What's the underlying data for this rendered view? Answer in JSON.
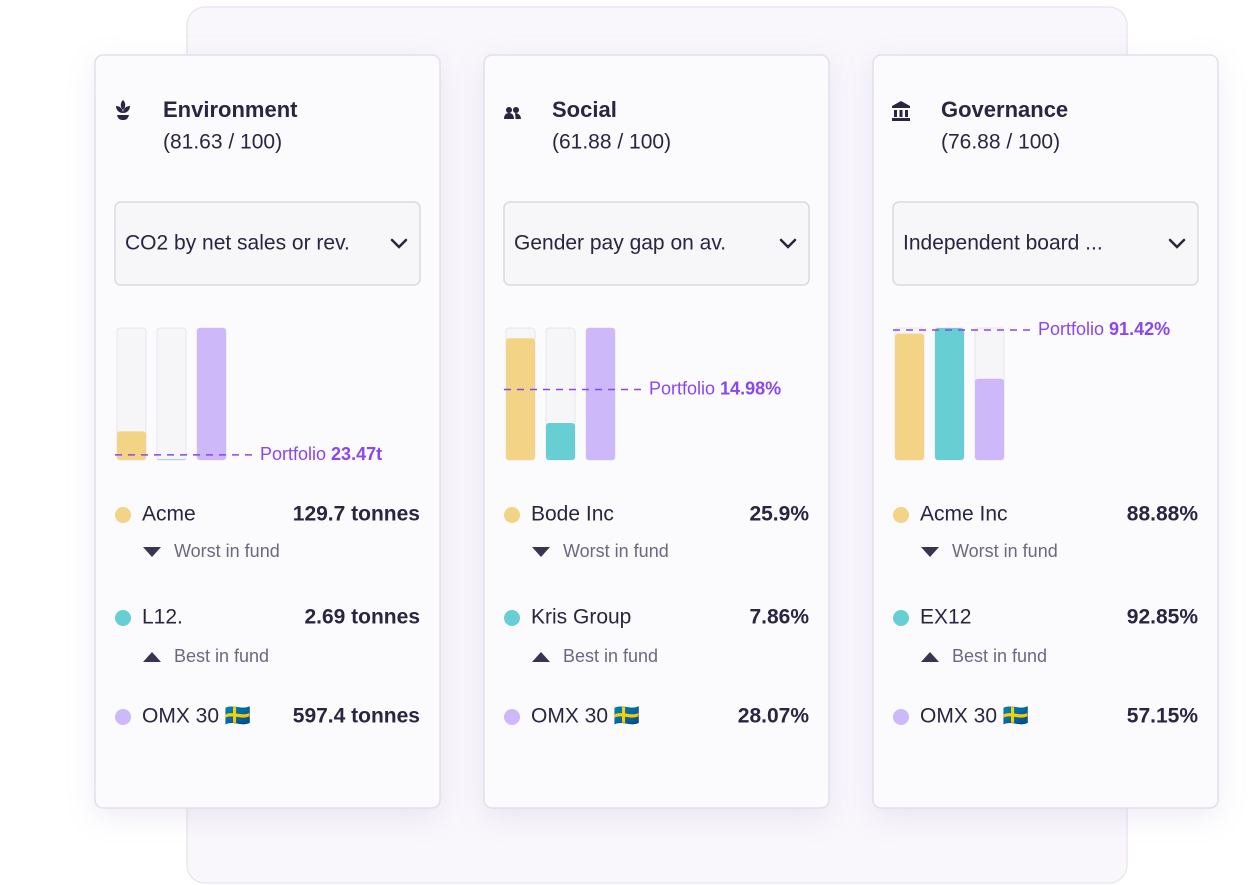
{
  "cards": [
    {
      "title": "Environment",
      "score": "(81.63 / 100)",
      "metric": "CO2 by net sales or rev.",
      "portfolio": {
        "label": "Portfolio",
        "value": 23.47,
        "value_label": "23.47t"
      },
      "rows": [
        {
          "name": "Acme",
          "value": 129.7,
          "value_label": "129.7 tonnes",
          "note": "Worst in fund",
          "color": "#f3d386"
        },
        {
          "name": "L12.",
          "value": 2.69,
          "value_label": "2.69 tonnes",
          "note": "Best in fund",
          "color": "#67cfd4"
        },
        {
          "name": "OMX 30 🇸🇪",
          "value": 597.4,
          "value_label": "597.4 tonnes",
          "color": "#cdb9fa"
        }
      ]
    },
    {
      "title": "Social",
      "score": "(61.88 / 100)",
      "metric": "Gender pay gap on av.",
      "portfolio": {
        "label": "Portfolio",
        "value": 14.98,
        "value_label": "14.98%"
      },
      "rows": [
        {
          "name": "Bode Inc",
          "value": 25.9,
          "value_label": "25.9%",
          "note": "Worst in fund",
          "color": "#f3d386"
        },
        {
          "name": "Kris Group",
          "value": 7.86,
          "value_label": "7.86%",
          "note": "Best in fund",
          "color": "#67cfd4"
        },
        {
          "name": "OMX 30 🇸🇪",
          "value": 28.07,
          "value_label": "28.07%",
          "color": "#cdb9fa"
        }
      ]
    },
    {
      "title": "Governance",
      "score": "(76.88 / 100)",
      "metric": "Independent board ...",
      "portfolio": {
        "label": "Portfolio",
        "value": 91.42,
        "value_label": "91.42%"
      },
      "rows": [
        {
          "name": "Acme Inc",
          "value": 88.88,
          "value_label": "88.88%",
          "note": "Worst in fund",
          "color": "#f3d386"
        },
        {
          "name": "EX12",
          "value": 92.85,
          "value_label": "92.85%",
          "note": "Best in fund",
          "color": "#67cfd4"
        },
        {
          "name": "OMX 30 🇸🇪",
          "value": 57.15,
          "value_label": "57.15%",
          "color": "#cdb9fa"
        }
      ]
    }
  ]
}
